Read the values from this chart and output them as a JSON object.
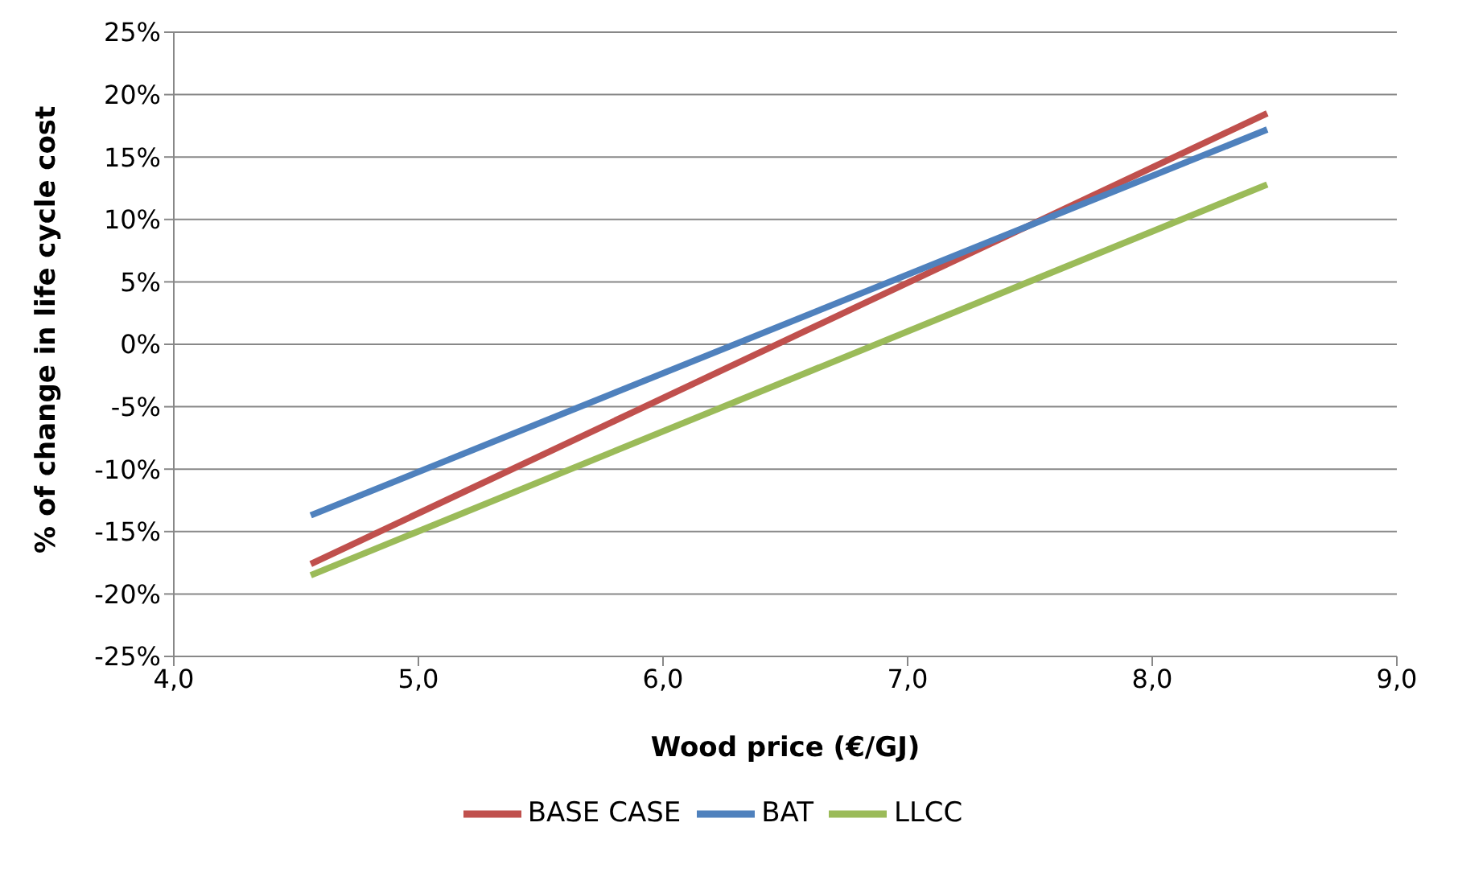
{
  "chart_data": {
    "type": "line",
    "xlabel": "Wood price (€/GJ)",
    "ylabel": "% of change in life cycle cost",
    "x": [
      4.56,
      8.47
    ],
    "series": [
      {
        "name": "BASE CASE",
        "color": "#c0504d",
        "values": [
          -17.6,
          18.5
        ]
      },
      {
        "name": "BAT",
        "color": "#4f81bd",
        "values": [
          -13.7,
          17.2
        ]
      },
      {
        "name": "LLCC",
        "color": "#9bbb59",
        "values": [
          -18.5,
          12.8
        ]
      }
    ],
    "xlim": [
      4,
      9
    ],
    "xticks": [
      {
        "value": 4,
        "label": "4,0"
      },
      {
        "value": 5,
        "label": "5,0"
      },
      {
        "value": 6,
        "label": "6,0"
      },
      {
        "value": 7,
        "label": "7,0"
      },
      {
        "value": 8,
        "label": "8,0"
      },
      {
        "value": 9,
        "label": "9,0"
      }
    ],
    "ylim": [
      -25,
      25
    ],
    "yticks": [
      {
        "value": -25,
        "label": "-25%"
      },
      {
        "value": -20,
        "label": "-20%"
      },
      {
        "value": -15,
        "label": "-15%"
      },
      {
        "value": -10,
        "label": "-10%"
      },
      {
        "value": -5,
        "label": "-5%"
      },
      {
        "value": 0,
        "label": "0%"
      },
      {
        "value": 5,
        "label": "5%"
      },
      {
        "value": 10,
        "label": "10%"
      },
      {
        "value": 15,
        "label": "15%"
      },
      {
        "value": 20,
        "label": "20%"
      },
      {
        "value": 25,
        "label": "25%"
      }
    ],
    "grid": "y",
    "legend": "bottom",
    "marker": "none",
    "line_style": "solid"
  }
}
